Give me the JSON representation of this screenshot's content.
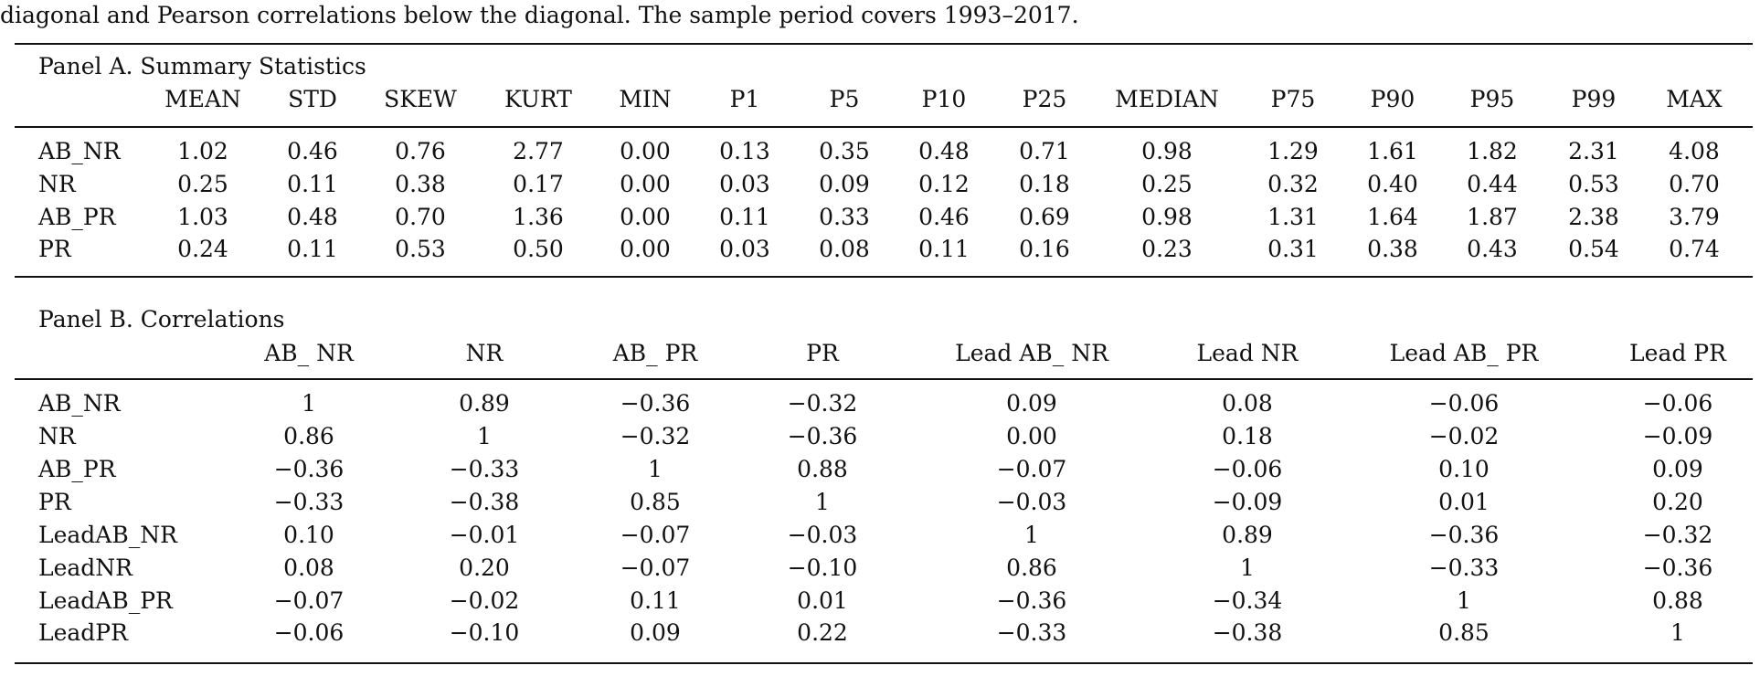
{
  "caption": "diagonal and Pearson correlations below the diagonal. The sample period covers 1993–2017.",
  "panel_a": {
    "title": "Panel A. Summary Statistics",
    "headers": [
      "MEAN",
      "STD",
      "SKEW",
      "KURT",
      "MIN",
      "P1",
      "P5",
      "P10",
      "P25",
      "MEDIAN",
      "P75",
      "P90",
      "P95",
      "P99",
      "MAX"
    ],
    "rows": [
      {
        "label": "AB_NR",
        "values": [
          "1.02",
          "0.46",
          "0.76",
          "2.77",
          "0.00",
          "0.13",
          "0.35",
          "0.48",
          "0.71",
          "0.98",
          "1.29",
          "1.61",
          "1.82",
          "2.31",
          "4.08"
        ]
      },
      {
        "label": "NR",
        "values": [
          "0.25",
          "0.11",
          "0.38",
          "0.17",
          "0.00",
          "0.03",
          "0.09",
          "0.12",
          "0.18",
          "0.25",
          "0.32",
          "0.40",
          "0.44",
          "0.53",
          "0.70"
        ]
      },
      {
        "label": "AB_PR",
        "values": [
          "1.03",
          "0.48",
          "0.70",
          "1.36",
          "0.00",
          "0.11",
          "0.33",
          "0.46",
          "0.69",
          "0.98",
          "1.31",
          "1.64",
          "1.87",
          "2.38",
          "3.79"
        ]
      },
      {
        "label": "PR",
        "values": [
          "0.24",
          "0.11",
          "0.53",
          "0.50",
          "0.00",
          "0.03",
          "0.08",
          "0.11",
          "0.16",
          "0.23",
          "0.31",
          "0.38",
          "0.43",
          "0.54",
          "0.74"
        ]
      }
    ]
  },
  "panel_b": {
    "title": "Panel B. Correlations",
    "headers": [
      "AB_ NR",
      "NR",
      "AB_ PR",
      "PR",
      "Lead AB_ NR",
      "Lead NR",
      "Lead AB_ PR",
      "Lead PR"
    ],
    "rows": [
      {
        "label": "AB_NR",
        "values": [
          "1",
          "0.89",
          "−0.36",
          "−0.32",
          "0.09",
          "0.08",
          "−0.06",
          "−0.06"
        ]
      },
      {
        "label": "NR",
        "values": [
          "0.86",
          "1",
          "−0.32",
          "−0.36",
          "0.00",
          "0.18",
          "−0.02",
          "−0.09"
        ]
      },
      {
        "label": "AB_PR",
        "values": [
          "−0.36",
          "−0.33",
          "1",
          "0.88",
          "−0.07",
          "−0.06",
          "0.10",
          "0.09"
        ]
      },
      {
        "label": "PR",
        "values": [
          "−0.33",
          "−0.38",
          "0.85",
          "1",
          "−0.03",
          "−0.09",
          "0.01",
          "0.20"
        ]
      },
      {
        "label": "LeadAB_NR",
        "values": [
          "0.10",
          "−0.01",
          "−0.07",
          "−0.03",
          "1",
          "0.89",
          "−0.36",
          "−0.32"
        ]
      },
      {
        "label": "LeadNR",
        "values": [
          "0.08",
          "0.20",
          "−0.07",
          "−0.10",
          "0.86",
          "1",
          "−0.33",
          "−0.36"
        ]
      },
      {
        "label": "LeadAB_PR",
        "values": [
          "−0.07",
          "−0.02",
          "0.11",
          "0.01",
          "−0.36",
          "−0.34",
          "1",
          "0.88"
        ]
      },
      {
        "label": "LeadPR",
        "values": [
          "−0.06",
          "−0.10",
          "0.09",
          "0.22",
          "−0.33",
          "−0.38",
          "0.85",
          "1"
        ]
      }
    ]
  }
}
